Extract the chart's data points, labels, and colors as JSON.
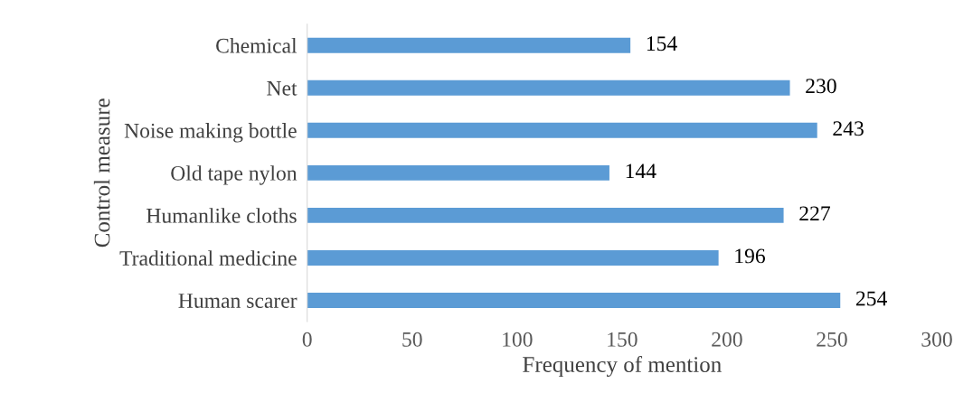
{
  "chart_data": {
    "type": "bar",
    "orientation": "horizontal",
    "xlabel": "Frequency of mention",
    "ylabel": "Control measure",
    "categories": [
      "Chemical",
      "Net",
      "Noise making bottle",
      "Old tape nylon",
      "Humanlike cloths",
      "Traditional medicine",
      "Human scarer"
    ],
    "values": [
      154,
      230,
      243,
      144,
      227,
      196,
      254
    ],
    "color": "#5b9bd5",
    "data_labels": true,
    "xlim": [
      0,
      300
    ],
    "xticks": [
      0,
      50,
      100,
      150,
      200,
      250,
      300
    ],
    "grid": false,
    "legend": false
  }
}
